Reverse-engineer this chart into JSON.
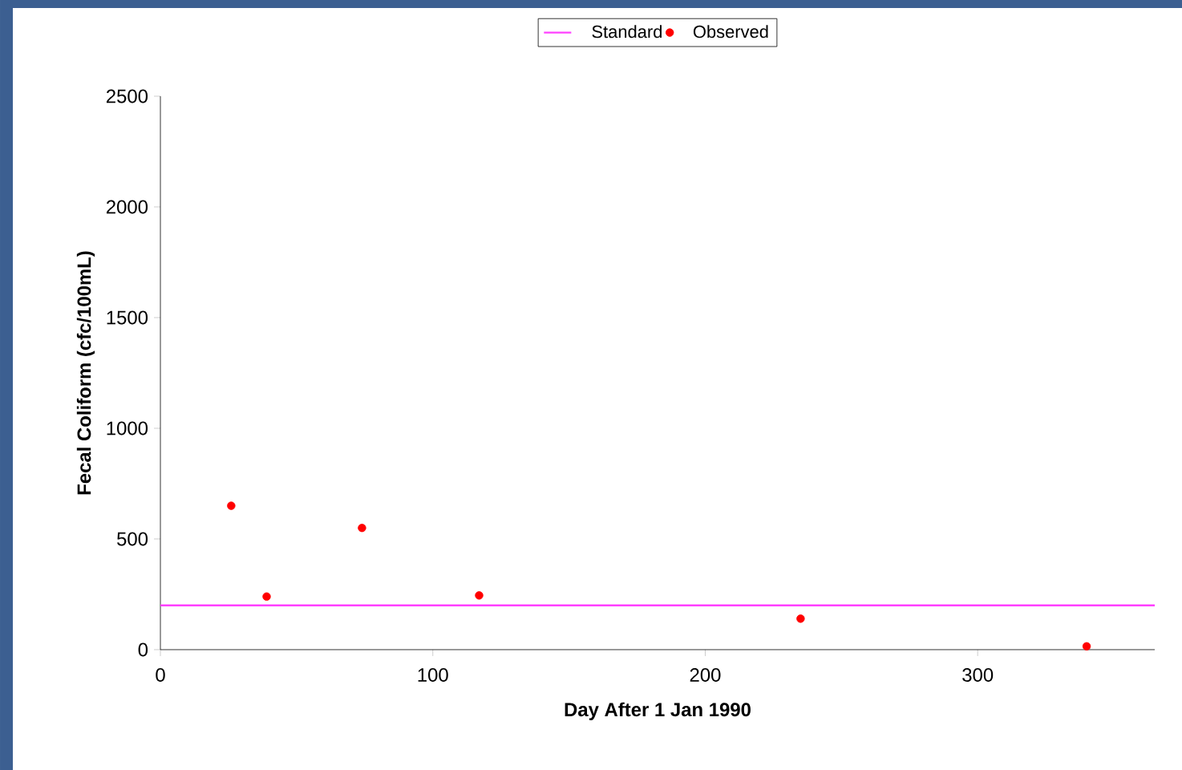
{
  "chart_data": {
    "type": "scatter",
    "xlabel": "Day After 1 Jan 1990",
    "ylabel": "Fecal Coliform (cfc/100mL)",
    "xlim": [
      0,
      365
    ],
    "ylim": [
      0,
      2500
    ],
    "xticks": [
      0,
      100,
      200,
      300
    ],
    "yticks": [
      0,
      500,
      1000,
      1500,
      2000,
      2500
    ],
    "legend": "top",
    "series": [
      {
        "name": "Standard",
        "type": "line",
        "color": "#ff40ff",
        "marker": "none",
        "x": [
          0,
          365
        ],
        "values": [
          200,
          200
        ]
      },
      {
        "name": "Observed",
        "color": "#ff0000",
        "marker": "circle",
        "x": [
          26,
          39,
          74,
          117,
          235,
          340
        ],
        "values": [
          650,
          240,
          550,
          245,
          140,
          15
        ]
      }
    ]
  }
}
